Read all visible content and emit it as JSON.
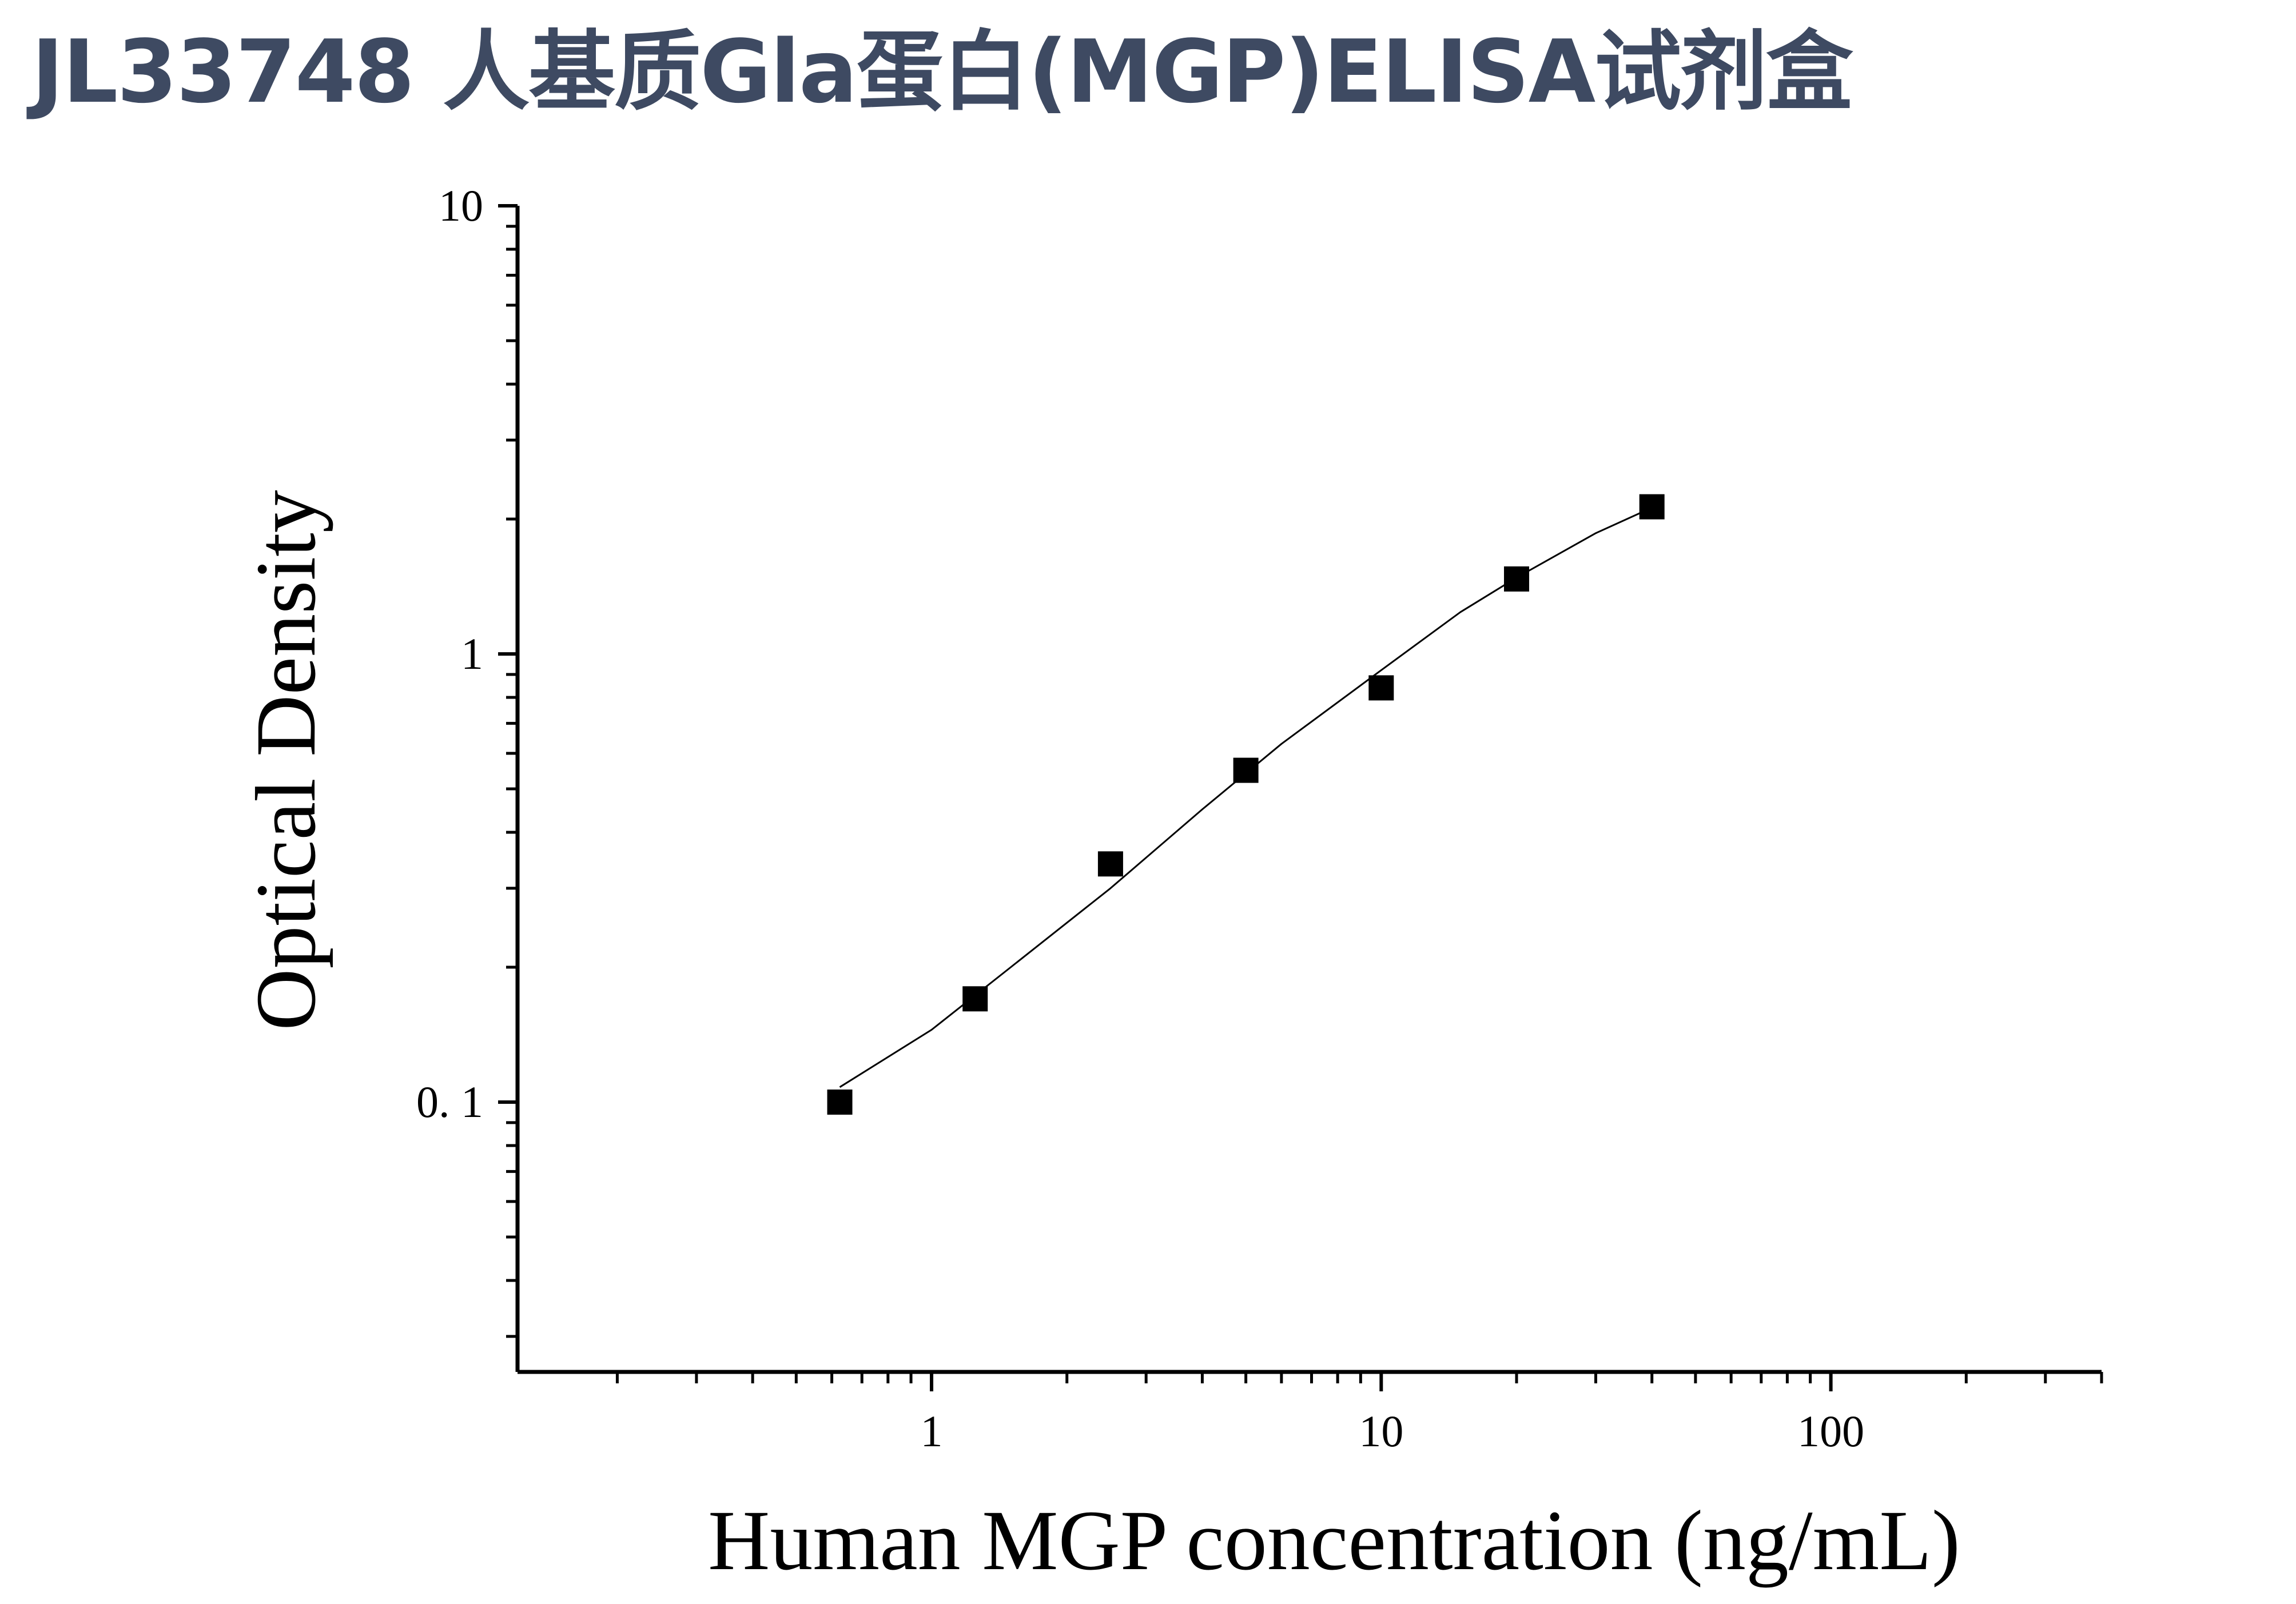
{
  "chart_data": {
    "type": "scatter",
    "title": "JL33748 人基质Gla蛋白(MGP)ELISA试剂盒",
    "xlabel": "Human MGP concentration (ng/mL)",
    "ylabel": "Optical Density",
    "x_scale": "log",
    "y_scale": "log",
    "xlim": [
      0.12,
      400
    ],
    "ylim": [
      0.025,
      10
    ],
    "x_ticks": [
      {
        "value": 1,
        "label": "1"
      },
      {
        "value": 10,
        "label": "10"
      },
      {
        "value": 100,
        "label": "100"
      }
    ],
    "y_ticks": [
      {
        "value": 0.1,
        "label": "0. 1"
      },
      {
        "value": 1,
        "label": "1"
      },
      {
        "value": 10,
        "label": "10"
      }
    ],
    "grid": false,
    "legend": "none",
    "series": [
      {
        "marker": "square",
        "color": "#000000",
        "x": [
          0.625,
          1.25,
          2.5,
          5,
          10,
          20,
          40
        ],
        "y": [
          0.1,
          0.17,
          0.34,
          0.55,
          0.84,
          1.47,
          2.13
        ]
      }
    ],
    "fit_curve": {
      "color": "#000000",
      "x": [
        0.625,
        1,
        1.5,
        2.5,
        4,
        6,
        10,
        15,
        20,
        30,
        40
      ],
      "y": [
        0.108,
        0.145,
        0.2,
        0.3,
        0.45,
        0.63,
        0.92,
        1.24,
        1.48,
        1.86,
        2.12
      ]
    }
  }
}
